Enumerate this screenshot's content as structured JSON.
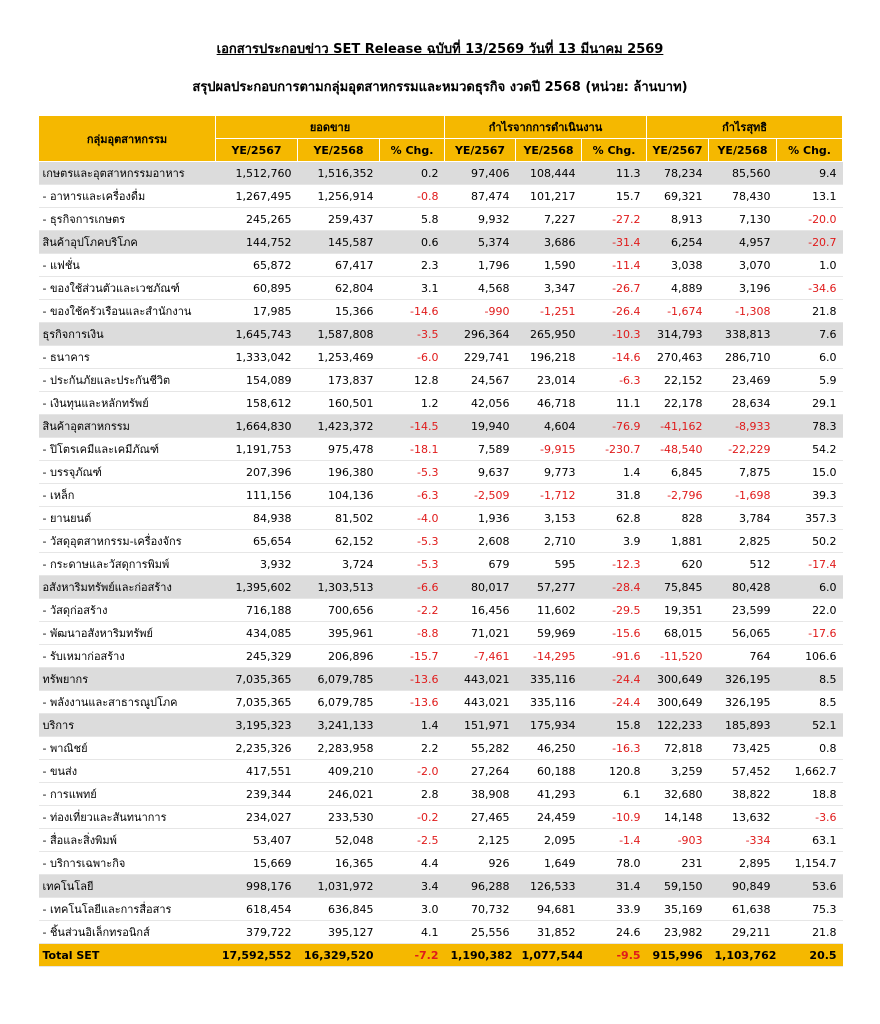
{
  "header": {
    "title": "เอกสารประกอบข่าว SET Release ฉบับที่ 13/2569 วันที่ 13 มีนาคม 2569",
    "subtitle": "สรุปผลประกอบการตามกลุ่มอุตสาหกรรมและหมวดธุรกิจ งวดปี 2568 (หน่วย: ล้านบาท)"
  },
  "table": {
    "corner": "กลุ่มอุตสาหกรรม",
    "groups": [
      "ยอดขาย",
      "กำไรจากการดำเนินงาน",
      "กำไรสุทธิ"
    ],
    "columns": [
      "YE/2567",
      "YE/2568",
      "% Chg.",
      "YE/2567",
      "YE/2568",
      "% Chg.",
      "YE/2567",
      "YE/2568",
      "% Chg."
    ],
    "rows": [
      [
        "เกษตรและอุตสาหกรรมอาหาร",
        "1,512,760",
        "1,516,352",
        "0.2",
        "97,406",
        "108,444",
        "11.3",
        "78,234",
        "85,560",
        "9.4"
      ],
      [
        "- อาหารและเครื่องดื่ม",
        "1,267,495",
        "1,256,914",
        "-0.8",
        "87,474",
        "101,217",
        "15.7",
        "69,321",
        "78,430",
        "13.1"
      ],
      [
        "- ธุรกิจการเกษตร",
        "245,265",
        "259,437",
        "5.8",
        "9,932",
        "7,227",
        "-27.2",
        "8,913",
        "7,130",
        "-20.0"
      ],
      [
        "สินค้าอุปโภคบริโภค",
        "144,752",
        "145,587",
        "0.6",
        "5,374",
        "3,686",
        "-31.4",
        "6,254",
        "4,957",
        "-20.7"
      ],
      [
        "- แฟชั่น",
        "65,872",
        "67,417",
        "2.3",
        "1,796",
        "1,590",
        "-11.4",
        "3,038",
        "3,070",
        "1.0"
      ],
      [
        "- ของใช้ส่วนตัวและเวชภัณฑ์",
        "60,895",
        "62,804",
        "3.1",
        "4,568",
        "3,347",
        "-26.7",
        "4,889",
        "3,196",
        "-34.6"
      ],
      [
        "- ของใช้ครัวเรือนและสำนักงาน",
        "17,985",
        "15,366",
        "-14.6",
        "-990",
        "-1,251",
        "-26.4",
        "-1,674",
        "-1,308",
        "21.8"
      ],
      [
        "ธุรกิจการเงิน",
        "1,645,743",
        "1,587,808",
        "-3.5",
        "296,364",
        "265,950",
        "-10.3",
        "314,793",
        "338,813",
        "7.6"
      ],
      [
        "- ธนาคาร",
        "1,333,042",
        "1,253,469",
        "-6.0",
        "229,741",
        "196,218",
        "-14.6",
        "270,463",
        "286,710",
        "6.0"
      ],
      [
        "- ประกันภัยและประกันชีวิต",
        "154,089",
        "173,837",
        "12.8",
        "24,567",
        "23,014",
        "-6.3",
        "22,152",
        "23,469",
        "5.9"
      ],
      [
        "- เงินทุนและหลักทรัพย์",
        "158,612",
        "160,501",
        "1.2",
        "42,056",
        "46,718",
        "11.1",
        "22,178",
        "28,634",
        "29.1"
      ],
      [
        "สินค้าอุตสาหกรรม",
        "1,664,830",
        "1,423,372",
        "-14.5",
        "19,940",
        "4,604",
        "-76.9",
        "-41,162",
        "-8,933",
        "78.3"
      ],
      [
        "- ปิโตรเคมีและเคมีภัณฑ์",
        "1,191,753",
        "975,478",
        "-18.1",
        "7,589",
        "-9,915",
        "-230.7",
        "-48,540",
        "-22,229",
        "54.2"
      ],
      [
        "- บรรจุภัณฑ์",
        "207,396",
        "196,380",
        "-5.3",
        "9,637",
        "9,773",
        "1.4",
        "6,845",
        "7,875",
        "15.0"
      ],
      [
        "- เหล็ก",
        "111,156",
        "104,136",
        "-6.3",
        "-2,509",
        "-1,712",
        "31.8",
        "-2,796",
        "-1,698",
        "39.3"
      ],
      [
        "- ยานยนต์",
        "84,938",
        "81,502",
        "-4.0",
        "1,936",
        "3,153",
        "62.8",
        "828",
        "3,784",
        "357.3"
      ],
      [
        "- วัสดุอุตสาหกรรม-เครื่องจักร",
        "65,654",
        "62,152",
        "-5.3",
        "2,608",
        "2,710",
        "3.9",
        "1,881",
        "2,825",
        "50.2"
      ],
      [
        "- กระดาษและวัสดุการพิมพ์",
        "3,932",
        "3,724",
        "-5.3",
        "679",
        "595",
        "-12.3",
        "620",
        "512",
        "-17.4"
      ],
      [
        "อสังหาริมทรัพย์และก่อสร้าง",
        "1,395,602",
        "1,303,513",
        "-6.6",
        "80,017",
        "57,277",
        "-28.4",
        "75,845",
        "80,428",
        "6.0"
      ],
      [
        "- วัสดุก่อสร้าง",
        "716,188",
        "700,656",
        "-2.2",
        "16,456",
        "11,602",
        "-29.5",
        "19,351",
        "23,599",
        "22.0"
      ],
      [
        "- พัฒนาอสังหาริมทรัพย์",
        "434,085",
        "395,961",
        "-8.8",
        "71,021",
        "59,969",
        "-15.6",
        "68,015",
        "56,065",
        "-17.6"
      ],
      [
        "- รับเหมาก่อสร้าง",
        "245,329",
        "206,896",
        "-15.7",
        "-7,461",
        "-14,295",
        "-91.6",
        "-11,520",
        "764",
        "106.6"
      ],
      [
        "ทรัพยากร",
        "7,035,365",
        "6,079,785",
        "-13.6",
        "443,021",
        "335,116",
        "-24.4",
        "300,649",
        "326,195",
        "8.5"
      ],
      [
        "- พลังงานและสาธารณูปโภค",
        "7,035,365",
        "6,079,785",
        "-13.6",
        "443,021",
        "335,116",
        "-24.4",
        "300,649",
        "326,195",
        "8.5"
      ],
      [
        "บริการ",
        "3,195,323",
        "3,241,133",
        "1.4",
        "151,971",
        "175,934",
        "15.8",
        "122,233",
        "185,893",
        "52.1"
      ],
      [
        "- พาณิชย์",
        "2,235,326",
        "2,283,958",
        "2.2",
        "55,282",
        "46,250",
        "-16.3",
        "72,818",
        "73,425",
        "0.8"
      ],
      [
        "- ขนส่ง",
        "417,551",
        "409,210",
        "-2.0",
        "27,264",
        "60,188",
        "120.8",
        "3,259",
        "57,452",
        "1,662.7"
      ],
      [
        "- การแพทย์",
        "239,344",
        "246,021",
        "2.8",
        "38,908",
        "41,293",
        "6.1",
        "32,680",
        "38,822",
        "18.8"
      ],
      [
        "- ท่องเที่ยวและสันทนาการ",
        "234,027",
        "233,530",
        "-0.2",
        "27,465",
        "24,459",
        "-10.9",
        "14,148",
        "13,632",
        "-3.6"
      ],
      [
        "- สื่อและสิ่งพิมพ์",
        "53,407",
        "52,048",
        "-2.5",
        "2,125",
        "2,095",
        "-1.4",
        "-903",
        "-334",
        "63.1"
      ],
      [
        "- บริการเฉพาะกิจ",
        "15,669",
        "16,365",
        "4.4",
        "926",
        "1,649",
        "78.0",
        "231",
        "2,895",
        "1,154.7"
      ],
      [
        "เทคโนโลยี",
        "998,176",
        "1,031,972",
        "3.4",
        "96,288",
        "126,533",
        "31.4",
        "59,150",
        "90,849",
        "53.6"
      ],
      [
        "- เทคโนโลยีและการสื่อสาร",
        "618,454",
        "636,845",
        "3.0",
        "70,732",
        "94,681",
        "33.9",
        "35,169",
        "61,638",
        "75.3"
      ],
      [
        "- ชิ้นส่วนอิเล็กทรอนิกส์",
        "379,722",
        "395,127",
        "4.1",
        "25,556",
        "31,852",
        "24.6",
        "23,982",
        "29,211",
        "21.8"
      ],
      [
        "Total SET",
        "17,592,552",
        "16,329,520",
        "-7.2",
        "1,190,382",
        "1,077,544",
        "-9.5",
        "915,996",
        "1,103,762",
        "20.5"
      ]
    ]
  }
}
